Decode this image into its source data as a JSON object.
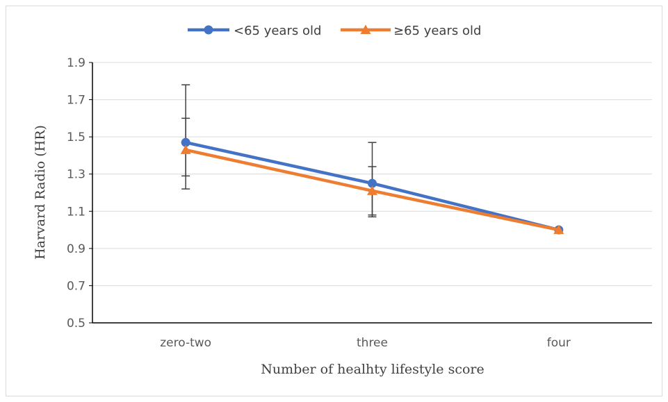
{
  "chart_data": {
    "type": "line",
    "title": "",
    "xlabel": "Number of  healhty lifestyle score",
    "ylabel": "Harvard Radio (HR)",
    "categories": [
      "zero-two",
      "three",
      "four"
    ],
    "ylim": [
      0.5,
      1.9
    ],
    "yticks": [
      0.5,
      0.7,
      0.9,
      1.1,
      1.3,
      1.5,
      1.7,
      1.9
    ],
    "ytick_labels": [
      "0.5",
      "0.7",
      "0.9",
      "1.1",
      "1.3",
      "1.5",
      "1.7",
      "1.9"
    ],
    "grid": true,
    "legend_position": "top",
    "series": [
      {
        "name": "<65 years old",
        "color": "#4472c4",
        "marker": "circle",
        "values": [
          1.47,
          1.25,
          1.0
        ],
        "error_low": [
          1.22,
          1.08,
          null
        ],
        "error_high": [
          1.78,
          1.47,
          null
        ]
      },
      {
        "name": "≥65 years old",
        "color": "#ed7d31",
        "marker": "triangle",
        "values": [
          1.43,
          1.21,
          1.0
        ],
        "error_low": [
          1.29,
          1.07,
          null
        ],
        "error_high": [
          1.6,
          1.34,
          null
        ]
      }
    ]
  }
}
